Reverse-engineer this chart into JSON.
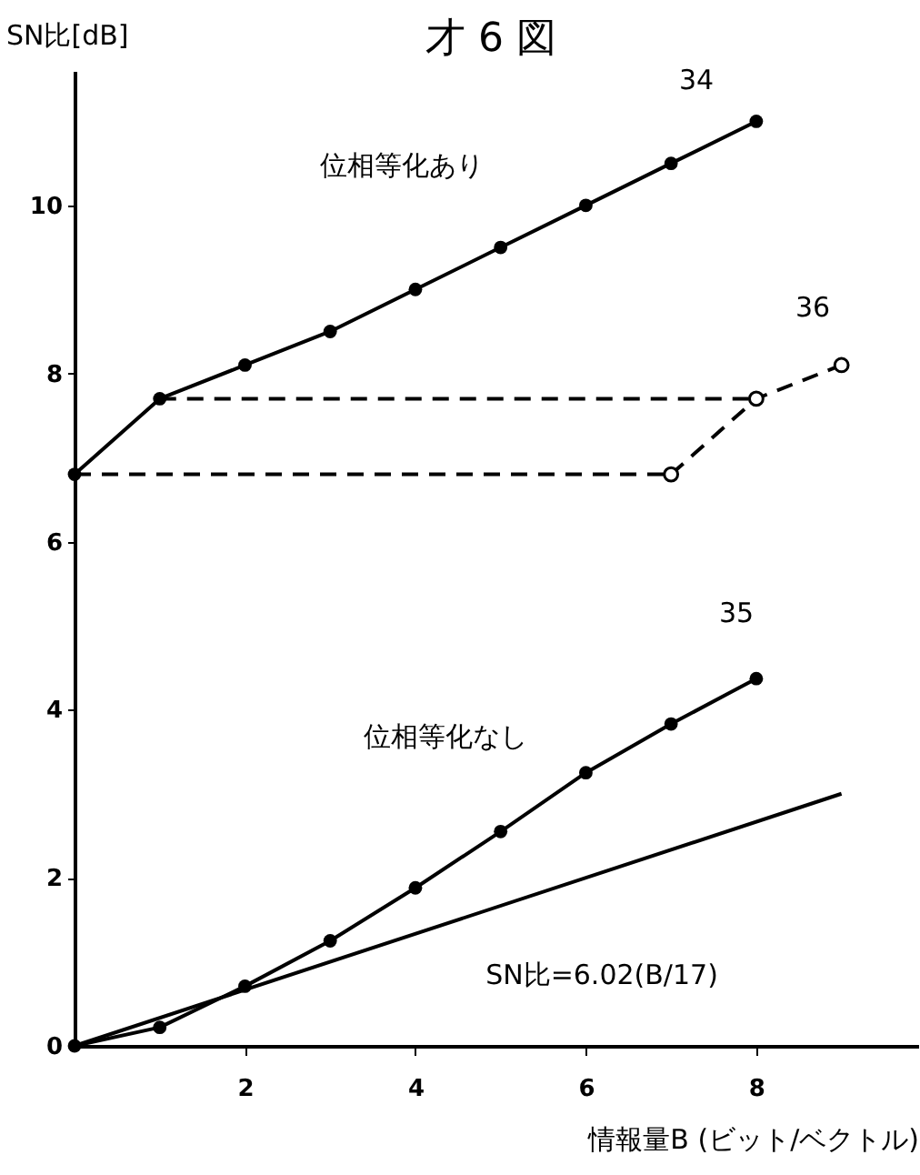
{
  "chart_data": {
    "type": "line",
    "title": "才 6 図",
    "xlabel": "情報量B (ビット/ベクトル)",
    "ylabel": "SN比[dB]",
    "xlim": [
      0,
      9.9
    ],
    "ylim": [
      0,
      11.6
    ],
    "xticks": [
      2,
      4,
      6,
      8
    ],
    "yticks": [
      0,
      2,
      4,
      6,
      8,
      10
    ],
    "grid": false,
    "series": [
      {
        "color": "#000000",
        "marker": "circle",
        "line_style": "solid",
        "x": [
          0,
          1,
          2,
          3,
          4,
          5,
          6,
          7,
          8
        ],
        "values": [
          6.8,
          7.7,
          8.1,
          8.5,
          9.0,
          9.5,
          10.0,
          10.5,
          11.0
        ]
      },
      {
        "color": "#000000",
        "marker": "circle",
        "line_style": "dashed",
        "x": [
          7,
          8,
          9
        ],
        "values": [
          6.8,
          7.7,
          8.1
        ]
      },
      {
        "color": "#000000",
        "marker": "none",
        "line_style": "dashed",
        "x": [
          0,
          7
        ],
        "values": [
          6.8,
          6.8
        ]
      },
      {
        "color": "#000000",
        "marker": "none",
        "line_style": "dashed",
        "x": [
          1,
          8
        ],
        "values": [
          7.7,
          7.7
        ]
      },
      {
        "color": "#000000",
        "marker": "circle",
        "line_style": "solid",
        "x": [
          0,
          1,
          2,
          3,
          4,
          5,
          6,
          7,
          8
        ],
        "values": [
          0,
          0.22,
          0.71,
          1.25,
          1.88,
          2.55,
          3.25,
          3.83,
          4.37
        ]
      },
      {
        "color": "#000000",
        "marker": "none",
        "line_style": "solid",
        "x": [
          0,
          9
        ],
        "values": [
          0,
          3.0
        ]
      }
    ],
    "annotations": [
      "34",
      "36",
      "35",
      "位相等化あり",
      "位相等化なし",
      "SN比=6.02(B/17)"
    ]
  }
}
